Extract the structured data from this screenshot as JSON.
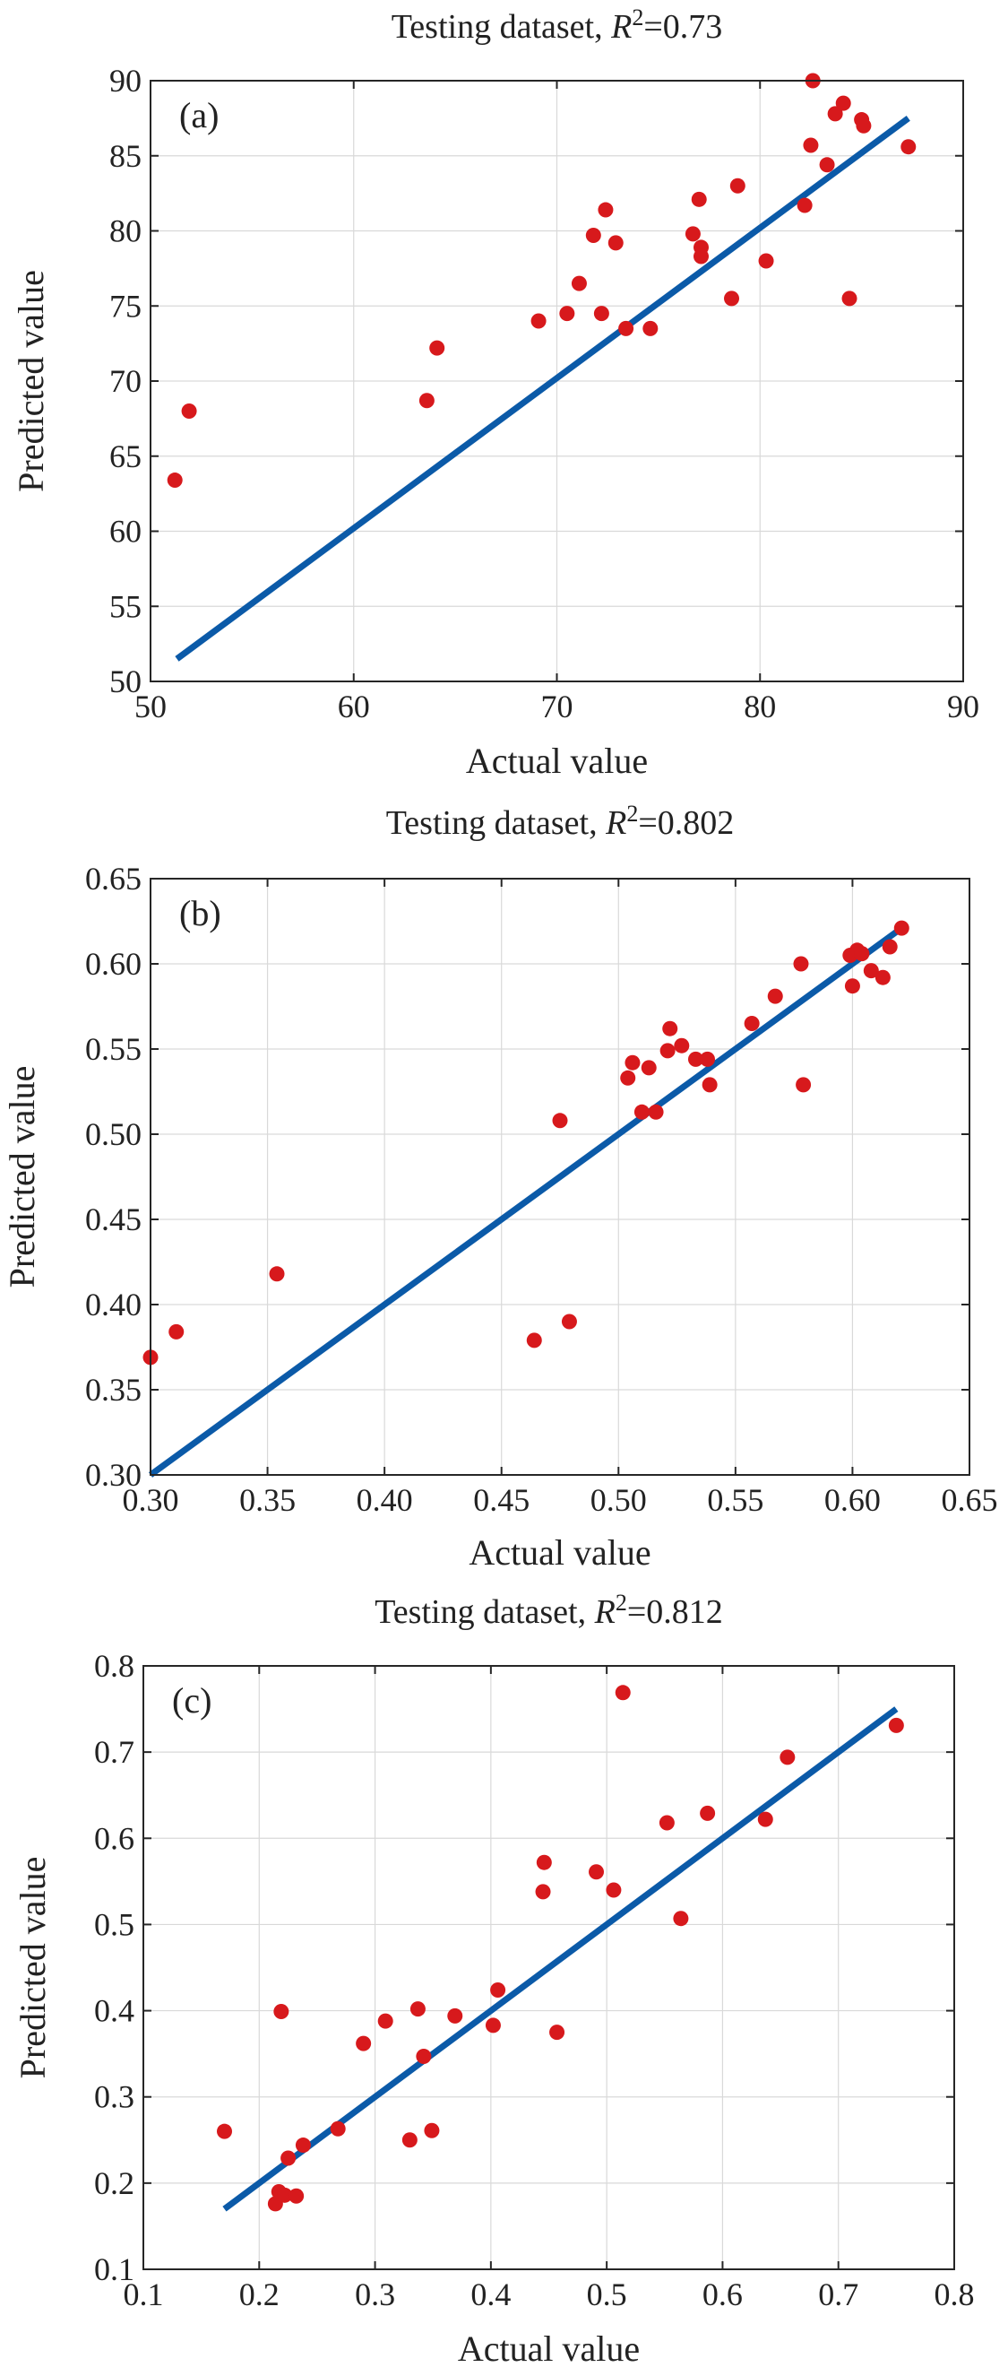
{
  "chart_data": [
    {
      "type": "scatter",
      "panel_label": "(a)",
      "title_prefix": "Testing dataset, ",
      "title_r": "R",
      "title_sup": "2",
      "title_value": "=0.73",
      "xlabel": "Actual value",
      "ylabel": "Predicted value",
      "xlim": [
        50,
        90
      ],
      "ylim": [
        50,
        90
      ],
      "xticks": [
        "50",
        "60",
        "70",
        "80",
        "90"
      ],
      "yticks": [
        "50",
        "55",
        "60",
        "65",
        "70",
        "75",
        "80",
        "85",
        "90"
      ],
      "grid": true,
      "colors": {
        "points": "#d7191c",
        "fit_line": "#0b5aa8"
      },
      "fit_line": {
        "x": [
          51.3,
          87.3
        ],
        "y": [
          51.5,
          87.5
        ]
      },
      "points": [
        {
          "x": 51.2,
          "y": 63.4
        },
        {
          "x": 51.9,
          "y": 68.0
        },
        {
          "x": 63.6,
          "y": 68.7
        },
        {
          "x": 64.1,
          "y": 72.2
        },
        {
          "x": 69.1,
          "y": 74.0
        },
        {
          "x": 70.5,
          "y": 74.5
        },
        {
          "x": 71.1,
          "y": 76.5
        },
        {
          "x": 71.8,
          "y": 79.7
        },
        {
          "x": 72.2,
          "y": 74.5
        },
        {
          "x": 72.4,
          "y": 81.4
        },
        {
          "x": 72.9,
          "y": 79.2
        },
        {
          "x": 73.4,
          "y": 73.5
        },
        {
          "x": 74.6,
          "y": 73.5
        },
        {
          "x": 76.7,
          "y": 79.8
        },
        {
          "x": 77.0,
          "y": 82.1
        },
        {
          "x": 77.1,
          "y": 78.9
        },
        {
          "x": 77.1,
          "y": 78.3
        },
        {
          "x": 78.6,
          "y": 75.5
        },
        {
          "x": 78.9,
          "y": 83.0
        },
        {
          "x": 80.3,
          "y": 78.0
        },
        {
          "x": 82.2,
          "y": 81.7
        },
        {
          "x": 82.5,
          "y": 85.7
        },
        {
          "x": 82.6,
          "y": 90.0
        },
        {
          "x": 83.3,
          "y": 84.4
        },
        {
          "x": 83.7,
          "y": 87.8
        },
        {
          "x": 84.1,
          "y": 88.5
        },
        {
          "x": 84.4,
          "y": 75.5
        },
        {
          "x": 85.0,
          "y": 87.4
        },
        {
          "x": 85.1,
          "y": 87.0
        },
        {
          "x": 87.3,
          "y": 85.6
        }
      ]
    },
    {
      "type": "scatter",
      "panel_label": "(b)",
      "title_prefix": "Testing dataset, ",
      "title_r": "R",
      "title_sup": "2",
      "title_value": "=0.802",
      "xlabel": "Actual value",
      "ylabel": "Predicted value",
      "xlim": [
        0.3,
        0.65
      ],
      "ylim": [
        0.3,
        0.65
      ],
      "xticks": [
        "0.30",
        "0.35",
        "0.40",
        "0.45",
        "0.50",
        "0.55",
        "0.60",
        "0.65"
      ],
      "yticks": [
        "0.30",
        "0.35",
        "0.40",
        "0.45",
        "0.50",
        "0.55",
        "0.60",
        "0.65"
      ],
      "grid": true,
      "colors": {
        "points": "#d7191c",
        "fit_line": "#0b5aa8"
      },
      "fit_line": {
        "x": [
          0.3,
          0.622
        ],
        "y": [
          0.3,
          0.622
        ]
      },
      "points": [
        {
          "x": 0.3,
          "y": 0.369
        },
        {
          "x": 0.311,
          "y": 0.384
        },
        {
          "x": 0.354,
          "y": 0.418
        },
        {
          "x": 0.464,
          "y": 0.379
        },
        {
          "x": 0.475,
          "y": 0.508
        },
        {
          "x": 0.479,
          "y": 0.39
        },
        {
          "x": 0.504,
          "y": 0.533
        },
        {
          "x": 0.506,
          "y": 0.542
        },
        {
          "x": 0.51,
          "y": 0.513
        },
        {
          "x": 0.513,
          "y": 0.539
        },
        {
          "x": 0.516,
          "y": 0.513
        },
        {
          "x": 0.521,
          "y": 0.549
        },
        {
          "x": 0.522,
          "y": 0.562
        },
        {
          "x": 0.527,
          "y": 0.552
        },
        {
          "x": 0.533,
          "y": 0.544
        },
        {
          "x": 0.538,
          "y": 0.544
        },
        {
          "x": 0.539,
          "y": 0.529
        },
        {
          "x": 0.557,
          "y": 0.565
        },
        {
          "x": 0.567,
          "y": 0.581
        },
        {
          "x": 0.578,
          "y": 0.6
        },
        {
          "x": 0.579,
          "y": 0.529
        },
        {
          "x": 0.599,
          "y": 0.605
        },
        {
          "x": 0.6,
          "y": 0.587
        },
        {
          "x": 0.602,
          "y": 0.608
        },
        {
          "x": 0.604,
          "y": 0.606
        },
        {
          "x": 0.608,
          "y": 0.596
        },
        {
          "x": 0.613,
          "y": 0.592
        },
        {
          "x": 0.616,
          "y": 0.61
        },
        {
          "x": 0.621,
          "y": 0.621
        }
      ]
    },
    {
      "type": "scatter",
      "panel_label": "(c)",
      "title_prefix": "Testing dataset, ",
      "title_r": "R",
      "title_sup": "2",
      "title_value": "=0.812",
      "xlabel": "Actual value",
      "ylabel": "Predicted value",
      "xlim": [
        0.1,
        0.8
      ],
      "ylim": [
        0.1,
        0.8
      ],
      "xticks": [
        "0.1",
        "0.2",
        "0.3",
        "0.4",
        "0.5",
        "0.6",
        "0.7",
        "0.8"
      ],
      "yticks": [
        "0.1",
        "0.2",
        "0.3",
        "0.4",
        "0.5",
        "0.6",
        "0.7",
        "0.8"
      ],
      "grid": true,
      "colors": {
        "points": "#d7191c",
        "fit_line": "#0b5aa8"
      },
      "fit_line": {
        "x": [
          0.17,
          0.75
        ],
        "y": [
          0.17,
          0.75
        ]
      },
      "points": [
        {
          "x": 0.17,
          "y": 0.26
        },
        {
          "x": 0.214,
          "y": 0.176
        },
        {
          "x": 0.217,
          "y": 0.19
        },
        {
          "x": 0.219,
          "y": 0.399
        },
        {
          "x": 0.222,
          "y": 0.186
        },
        {
          "x": 0.225,
          "y": 0.229
        },
        {
          "x": 0.232,
          "y": 0.185
        },
        {
          "x": 0.238,
          "y": 0.244
        },
        {
          "x": 0.268,
          "y": 0.263
        },
        {
          "x": 0.29,
          "y": 0.362
        },
        {
          "x": 0.309,
          "y": 0.388
        },
        {
          "x": 0.33,
          "y": 0.25
        },
        {
          "x": 0.337,
          "y": 0.402
        },
        {
          "x": 0.342,
          "y": 0.347
        },
        {
          "x": 0.349,
          "y": 0.261
        },
        {
          "x": 0.369,
          "y": 0.394
        },
        {
          "x": 0.402,
          "y": 0.383
        },
        {
          "x": 0.406,
          "y": 0.424
        },
        {
          "x": 0.445,
          "y": 0.538
        },
        {
          "x": 0.446,
          "y": 0.572
        },
        {
          "x": 0.457,
          "y": 0.375
        },
        {
          "x": 0.491,
          "y": 0.561
        },
        {
          "x": 0.506,
          "y": 0.54
        },
        {
          "x": 0.514,
          "y": 0.769
        },
        {
          "x": 0.552,
          "y": 0.618
        },
        {
          "x": 0.564,
          "y": 0.507
        },
        {
          "x": 0.587,
          "y": 0.629
        },
        {
          "x": 0.637,
          "y": 0.622
        },
        {
          "x": 0.656,
          "y": 0.694
        },
        {
          "x": 0.75,
          "y": 0.731
        }
      ]
    }
  ]
}
